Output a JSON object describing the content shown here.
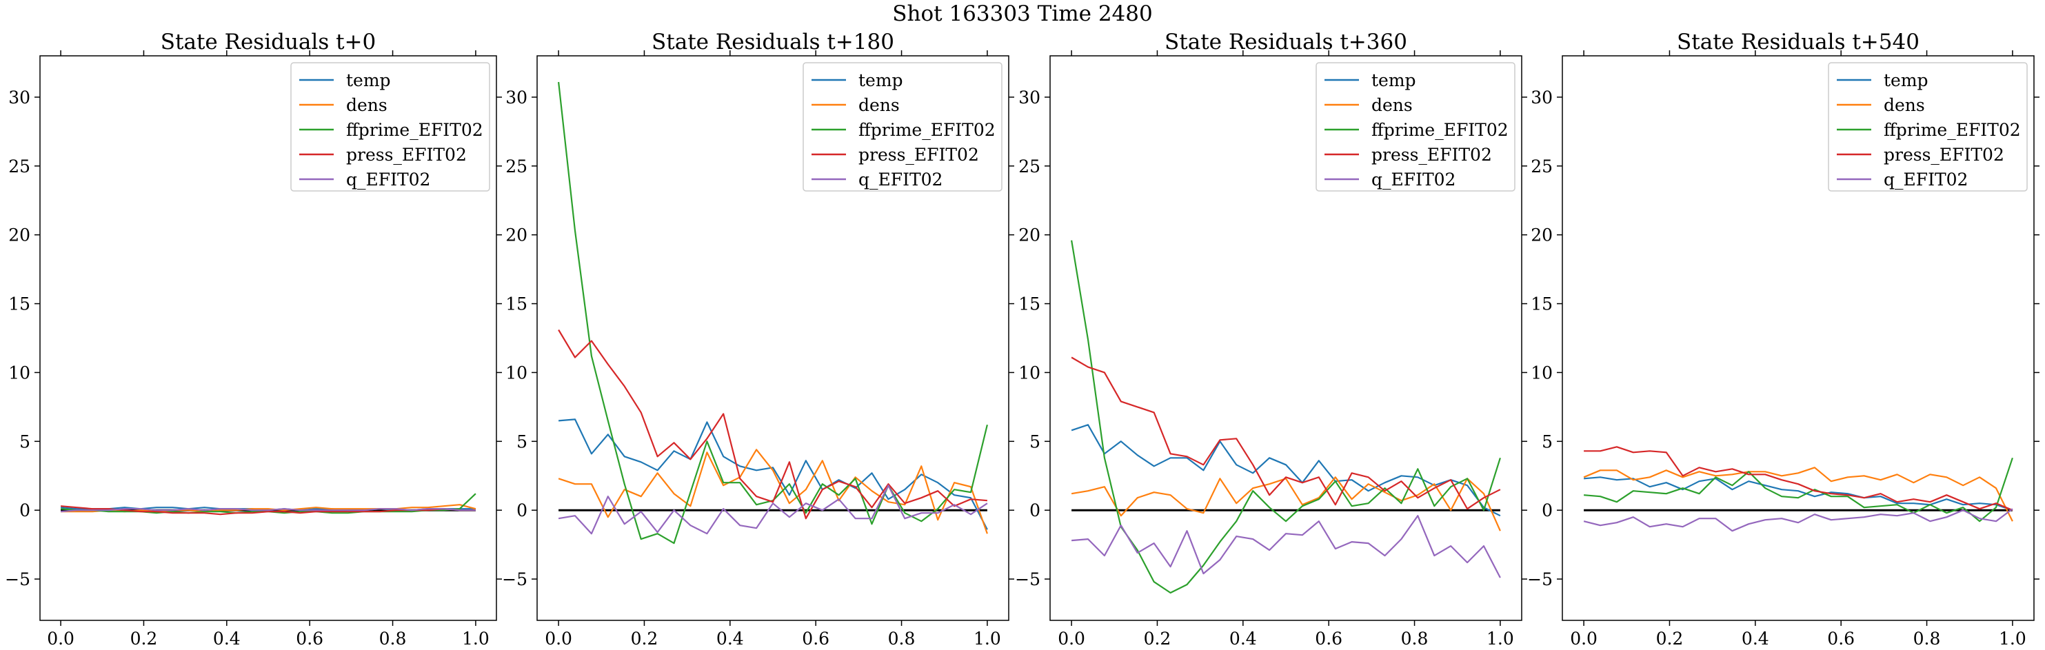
{
  "suptitle": "Shot 163303   Time 2480",
  "colors": {
    "temp": "#1f77b4",
    "dens": "#ff7f0e",
    "ffprime_EFIT02": "#2ca02c",
    "press_EFIT02": "#d62728",
    "q_EFIT02": "#9467bd",
    "zero_line": "#000000"
  },
  "chart_data": [
    {
      "type": "line",
      "title": "State Residuals t+0",
      "xlim": [
        -0.05,
        1.05
      ],
      "ylim": [
        -8,
        33
      ],
      "xticks": [
        "0.0",
        "0.2",
        "0.4",
        "0.6",
        "0.8",
        "1.0"
      ],
      "yticks": [
        "−5",
        "0",
        "5",
        "10",
        "15",
        "20",
        "25",
        "30"
      ],
      "legend_position": "top-right",
      "grid": false,
      "zero_line": true,
      "x": [
        0.0,
        0.0385,
        0.0769,
        0.1154,
        0.1538,
        0.1923,
        0.2308,
        0.2692,
        0.3077,
        0.3462,
        0.3846,
        0.4231,
        0.4615,
        0.5,
        0.5385,
        0.5769,
        0.6154,
        0.6538,
        0.6923,
        0.7308,
        0.7692,
        0.8077,
        0.8462,
        0.8846,
        0.9231,
        0.9615,
        1.0
      ],
      "series": [
        {
          "name": "temp",
          "values": [
            0.2,
            0.1,
            0.1,
            0.1,
            0.2,
            0.1,
            0.2,
            0.2,
            0.1,
            0.2,
            0.1,
            0.1,
            0.1,
            0.0,
            0.1,
            0.0,
            0.1,
            0.1,
            0.0,
            0.0,
            0.1,
            0.0,
            0.0,
            0.1,
            0.1,
            0.1,
            0.1
          ]
        },
        {
          "name": "dens",
          "values": [
            -0.1,
            -0.1,
            -0.1,
            0.0,
            -0.1,
            0.0,
            -0.1,
            0.0,
            0.0,
            -0.1,
            0.0,
            0.0,
            0.1,
            0.1,
            0.0,
            0.1,
            0.2,
            0.1,
            0.1,
            0.1,
            0.1,
            0.1,
            0.2,
            0.2,
            0.3,
            0.4,
            0.1
          ]
        },
        {
          "name": "ffprime_EFIT02",
          "values": [
            0.1,
            0.0,
            0.0,
            -0.1,
            -0.1,
            -0.1,
            -0.2,
            -0.1,
            -0.2,
            -0.1,
            -0.1,
            -0.2,
            -0.1,
            -0.1,
            -0.2,
            -0.1,
            -0.1,
            -0.2,
            -0.2,
            -0.1,
            -0.1,
            -0.1,
            -0.1,
            0.0,
            0.0,
            0.1,
            1.2
          ]
        },
        {
          "name": "press_EFIT02",
          "values": [
            0.3,
            0.2,
            0.1,
            0.1,
            0.0,
            -0.1,
            -0.1,
            -0.2,
            -0.2,
            -0.2,
            -0.3,
            -0.2,
            -0.2,
            -0.1,
            -0.1,
            -0.2,
            -0.1,
            -0.1,
            -0.1,
            -0.1,
            -0.1,
            0.0,
            0.0,
            0.0,
            0.1,
            0.0,
            0.0
          ]
        },
        {
          "name": "q_EFIT02",
          "values": [
            -0.1,
            0.0,
            0.0,
            0.0,
            0.1,
            0.1,
            0.0,
            0.0,
            0.1,
            0.0,
            0.1,
            0.1,
            0.0,
            0.0,
            0.1,
            0.0,
            0.0,
            0.0,
            0.0,
            0.0,
            0.1,
            0.1,
            0.0,
            0.1,
            0.1,
            0.0,
            0.0
          ]
        }
      ]
    },
    {
      "type": "line",
      "title": "State Residuals t+180",
      "xlim": [
        -0.05,
        1.05
      ],
      "ylim": [
        -8,
        33
      ],
      "xticks": [
        "0.0",
        "0.2",
        "0.4",
        "0.6",
        "0.8",
        "1.0"
      ],
      "yticks": [
        "−5",
        "0",
        "5",
        "10",
        "15",
        "20",
        "25",
        "30"
      ],
      "legend_position": "top-right",
      "grid": false,
      "zero_line": true,
      "x": [
        0.0,
        0.0385,
        0.0769,
        0.1154,
        0.1538,
        0.1923,
        0.2308,
        0.2692,
        0.3077,
        0.3462,
        0.3846,
        0.4231,
        0.4615,
        0.5,
        0.5385,
        0.5769,
        0.6154,
        0.6538,
        0.6923,
        0.7308,
        0.7692,
        0.8077,
        0.8462,
        0.8846,
        0.9231,
        0.9615,
        1.0
      ],
      "series": [
        {
          "name": "temp",
          "values": [
            6.5,
            6.6,
            4.1,
            5.5,
            3.9,
            3.5,
            2.9,
            4.3,
            3.7,
            6.4,
            3.9,
            3.2,
            2.9,
            3.1,
            1.1,
            3.6,
            1.5,
            2.2,
            1.6,
            2.7,
            0.8,
            1.5,
            2.6,
            2.0,
            1.1,
            0.9,
            -1.4
          ]
        },
        {
          "name": "dens",
          "values": [
            2.3,
            1.9,
            1.9,
            -0.5,
            1.5,
            1.0,
            2.7,
            1.2,
            0.3,
            4.2,
            1.8,
            2.4,
            4.4,
            2.9,
            0.5,
            1.5,
            3.6,
            0.7,
            2.4,
            1.4,
            0.6,
            0.4,
            3.2,
            -0.7,
            2.0,
            1.7,
            -1.7
          ]
        },
        {
          "name": "ffprime_EFIT02",
          "values": [
            31.1,
            20.3,
            11.2,
            6.5,
            1.9,
            -2.1,
            -1.7,
            -2.4,
            1.3,
            5.0,
            2.0,
            2.0,
            0.4,
            0.7,
            1.9,
            -0.2,
            1.9,
            1.1,
            2.3,
            -1.0,
            1.8,
            -0.2,
            -0.8,
            0.1,
            1.5,
            1.3,
            6.2
          ]
        },
        {
          "name": "press_EFIT02",
          "values": [
            13.1,
            11.1,
            12.3,
            10.6,
            9.0,
            7.1,
            3.9,
            4.9,
            3.7,
            5.2,
            7.0,
            2.3,
            1.0,
            0.6,
            3.5,
            -0.6,
            1.5,
            2.1,
            1.7,
            0.2,
            1.9,
            0.5,
            0.9,
            1.4,
            0.3,
            0.8,
            0.7
          ]
        },
        {
          "name": "q_EFIT02",
          "values": [
            -0.6,
            -0.4,
            -1.7,
            1.0,
            -1.0,
            -0.1,
            -1.6,
            0.0,
            -1.1,
            -1.7,
            0.1,
            -1.1,
            -1.3,
            0.5,
            -0.5,
            0.5,
            0.0,
            0.8,
            -0.6,
            -0.6,
            1.8,
            -0.6,
            -0.2,
            -0.2,
            0.4,
            -0.3,
            0.5
          ]
        }
      ]
    },
    {
      "type": "line",
      "title": "State Residuals t+360",
      "xlim": [
        -0.05,
        1.05
      ],
      "ylim": [
        -8,
        33
      ],
      "xticks": [
        "0.0",
        "0.2",
        "0.4",
        "0.6",
        "0.8",
        "1.0"
      ],
      "yticks": [
        "−5",
        "0",
        "5",
        "10",
        "15",
        "20",
        "25",
        "30"
      ],
      "legend_position": "top-right",
      "grid": false,
      "zero_line": true,
      "x": [
        0.0,
        0.0385,
        0.0769,
        0.1154,
        0.1538,
        0.1923,
        0.2308,
        0.2692,
        0.3077,
        0.3462,
        0.3846,
        0.4231,
        0.4615,
        0.5,
        0.5385,
        0.5769,
        0.6154,
        0.6538,
        0.6923,
        0.7308,
        0.7692,
        0.8077,
        0.8462,
        0.8846,
        0.9231,
        0.9615,
        1.0
      ],
      "series": [
        {
          "name": "temp",
          "values": [
            5.8,
            6.2,
            4.1,
            5.0,
            4.0,
            3.2,
            3.8,
            3.8,
            2.9,
            5.0,
            3.3,
            2.7,
            3.8,
            3.3,
            2.0,
            3.6,
            2.1,
            2.2,
            1.4,
            2.0,
            2.5,
            2.4,
            1.8,
            2.2,
            1.8,
            0.2,
            -0.4
          ]
        },
        {
          "name": "dens",
          "values": [
            1.2,
            1.4,
            1.7,
            -0.4,
            0.9,
            1.3,
            1.1,
            0.1,
            -0.2,
            2.3,
            0.5,
            1.6,
            1.9,
            2.3,
            0.4,
            0.9,
            2.4,
            0.8,
            1.9,
            1.3,
            0.7,
            1.1,
            1.9,
            0.0,
            2.3,
            1.2,
            -1.5
          ]
        },
        {
          "name": "ffprime_EFIT02",
          "values": [
            19.6,
            12.4,
            3.8,
            -1.2,
            -2.9,
            -5.2,
            -6.0,
            -5.4,
            -4.0,
            -2.3,
            -0.8,
            1.4,
            0.2,
            -0.8,
            0.3,
            0.8,
            2.1,
            0.3,
            0.5,
            1.6,
            0.5,
            3.0,
            0.3,
            1.7,
            2.3,
            0.0,
            3.8
          ]
        },
        {
          "name": "press_EFIT02",
          "values": [
            11.1,
            10.4,
            10.0,
            7.9,
            7.5,
            7.1,
            4.1,
            3.9,
            3.3,
            5.1,
            5.2,
            3.3,
            1.1,
            2.4,
            2.0,
            2.4,
            0.4,
            2.7,
            2.4,
            1.4,
            2.1,
            0.9,
            1.6,
            2.2,
            0.1,
            0.9,
            1.5
          ]
        },
        {
          "name": "q_EFIT02",
          "values": [
            -2.2,
            -2.1,
            -3.3,
            -1.1,
            -3.1,
            -2.4,
            -4.1,
            -1.5,
            -4.6,
            -3.6,
            -1.9,
            -2.1,
            -2.9,
            -1.7,
            -1.8,
            -0.8,
            -2.8,
            -2.3,
            -2.4,
            -3.3,
            -2.1,
            -0.4,
            -3.3,
            -2.6,
            -3.8,
            -2.6,
            -4.9
          ]
        }
      ]
    },
    {
      "type": "line",
      "title": "State Residuals t+540",
      "xlim": [
        -0.05,
        1.05
      ],
      "ylim": [
        -8,
        33
      ],
      "xticks": [
        "0.0",
        "0.2",
        "0.4",
        "0.6",
        "0.8",
        "1.0"
      ],
      "yticks": [
        "−5",
        "0",
        "5",
        "10",
        "15",
        "20",
        "25",
        "30"
      ],
      "legend_position": "top-right",
      "grid": false,
      "zero_line": true,
      "x": [
        0.0,
        0.0385,
        0.0769,
        0.1154,
        0.1538,
        0.1923,
        0.2308,
        0.2692,
        0.3077,
        0.3462,
        0.3846,
        0.4231,
        0.4615,
        0.5,
        0.5385,
        0.5769,
        0.6154,
        0.6538,
        0.6923,
        0.7308,
        0.7692,
        0.8077,
        0.8462,
        0.8846,
        0.9231,
        0.9615,
        1.0
      ],
      "series": [
        {
          "name": "temp",
          "values": [
            2.3,
            2.4,
            2.2,
            2.3,
            1.7,
            2.0,
            1.5,
            2.1,
            2.3,
            1.5,
            2.1,
            1.8,
            1.5,
            1.4,
            1.0,
            1.3,
            1.2,
            0.9,
            1.0,
            0.5,
            0.5,
            0.4,
            0.8,
            0.4,
            0.5,
            0.4,
            0.0
          ]
        },
        {
          "name": "dens",
          "values": [
            2.4,
            2.9,
            2.9,
            2.2,
            2.4,
            2.9,
            2.4,
            2.8,
            2.5,
            2.6,
            2.8,
            2.8,
            2.5,
            2.7,
            3.1,
            2.1,
            2.4,
            2.5,
            2.2,
            2.6,
            2.0,
            2.6,
            2.4,
            1.8,
            2.4,
            1.6,
            -0.8
          ]
        },
        {
          "name": "ffprime_EFIT02",
          "values": [
            1.1,
            1.0,
            0.6,
            1.4,
            1.3,
            1.2,
            1.6,
            1.2,
            2.4,
            1.8,
            2.8,
            1.6,
            1.0,
            0.9,
            1.5,
            1.0,
            1.0,
            0.2,
            0.3,
            0.4,
            -0.2,
            0.4,
            -0.2,
            0.2,
            -0.8,
            0.2,
            3.8
          ]
        },
        {
          "name": "press_EFIT02",
          "values": [
            4.3,
            4.3,
            4.6,
            4.2,
            4.3,
            4.2,
            2.5,
            3.1,
            2.8,
            3.0,
            2.6,
            2.6,
            2.2,
            1.9,
            1.4,
            1.2,
            1.1,
            0.9,
            1.2,
            0.6,
            0.8,
            0.6,
            1.1,
            0.6,
            0.1,
            0.5,
            0.0
          ]
        },
        {
          "name": "q_EFIT02",
          "values": [
            -0.8,
            -1.1,
            -0.9,
            -0.5,
            -1.2,
            -1.0,
            -1.2,
            -0.6,
            -0.6,
            -1.5,
            -1.0,
            -0.7,
            -0.6,
            -0.9,
            -0.3,
            -0.7,
            -0.6,
            -0.5,
            -0.3,
            -0.4,
            -0.2,
            -0.8,
            -0.5,
            0.0,
            -0.6,
            -0.8,
            0.1
          ]
        }
      ]
    }
  ]
}
